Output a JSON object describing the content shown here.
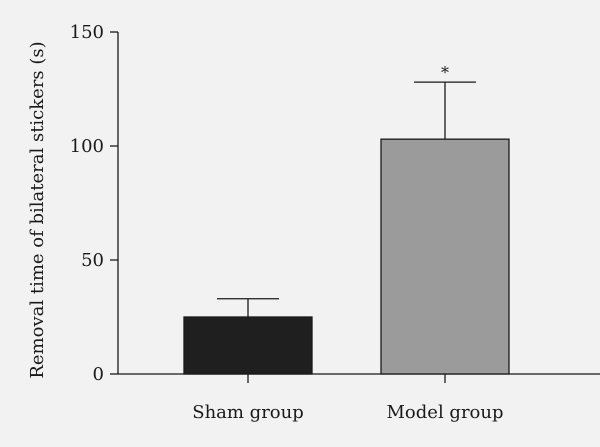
{
  "chart_data": {
    "type": "bar",
    "title": "",
    "xlabel": "",
    "ylabel": "Removal time of bilateral stickers (s)",
    "ylim": [
      0,
      150
    ],
    "yticks": [
      0,
      50,
      100,
      150
    ],
    "categories": [
      "Sham group",
      "Model group"
    ],
    "values": [
      25,
      103
    ],
    "error_upper": [
      8,
      25
    ],
    "colors": [
      "#1f1f1f",
      "#9b9b9b"
    ],
    "annotations": [
      "",
      "*"
    ],
    "grid": false,
    "legend": "none"
  }
}
